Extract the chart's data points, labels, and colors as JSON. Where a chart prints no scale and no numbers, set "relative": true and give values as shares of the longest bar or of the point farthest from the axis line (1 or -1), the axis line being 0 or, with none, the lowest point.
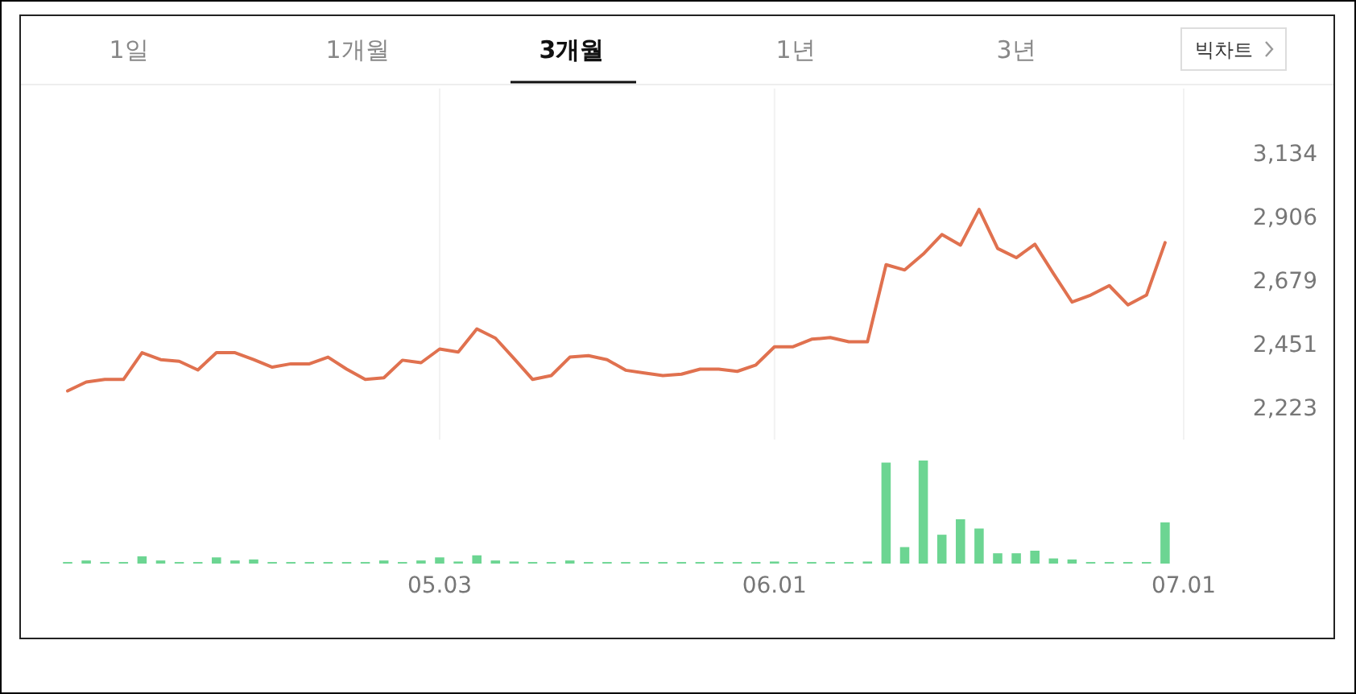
{
  "chart_data": [
    {
      "type": "line",
      "annotations": [
        "1일",
        "1개월",
        "3개월",
        "1년",
        "3년",
        "빅차트"
      ],
      "categories": [
        null,
        null,
        null,
        null,
        null,
        null,
        null,
        null,
        null,
        null,
        null,
        null,
        null,
        null,
        null,
        null,
        null,
        null,
        null,
        null,
        "05.03",
        null,
        null,
        null,
        null,
        null,
        null,
        null,
        null,
        null,
        null,
        null,
        null,
        null,
        null,
        null,
        null,
        null,
        "06.01",
        null,
        null,
        null,
        null,
        null,
        null,
        null,
        null,
        null,
        null,
        null,
        null,
        null,
        null,
        null,
        null,
        null,
        null,
        null,
        null,
        null,
        "07.01"
      ],
      "series": [
        {
          "color": "#e0714f",
          "values": [
            2282,
            2314,
            2323,
            2323,
            2419,
            2394,
            2388,
            2357,
            2419,
            2419,
            2394,
            2367,
            2379,
            2379,
            2403,
            2360,
            2323,
            2329,
            2392,
            2383,
            2432,
            2421,
            2504,
            2471,
            2398,
            2323,
            2337,
            2403,
            2408,
            2394,
            2356,
            2346,
            2337,
            2342,
            2360,
            2360,
            2352,
            2375,
            2440,
            2440,
            2467,
            2473,
            2458,
            2458,
            2734,
            2715,
            2772,
            2842,
            2804,
            2932,
            2792,
            2759,
            2807,
            2702,
            2600,
            2625,
            2659,
            2590,
            2625,
            2813,
            null
          ]
        }
      ],
      "ylim": [
        2223,
        3134
      ],
      "yticks": [
        {
          "value": 2223,
          "label": "2,223"
        },
        {
          "value": 2451,
          "label": "2,451"
        },
        {
          "value": 2679,
          "label": "2,679"
        },
        {
          "value": 2906,
          "label": "2,906"
        },
        {
          "value": 3134,
          "label": "3,134"
        }
      ],
      "tick_labels": "y",
      "grid": "x",
      "marker": "none",
      "line_style": "solid"
    },
    {
      "type": "bar",
      "relative": true,
      "categories": [
        null,
        null,
        null,
        null,
        null,
        null,
        null,
        null,
        null,
        null,
        null,
        null,
        null,
        null,
        null,
        null,
        null,
        null,
        null,
        null,
        "05.03",
        null,
        null,
        null,
        null,
        null,
        null,
        null,
        null,
        null,
        null,
        null,
        null,
        null,
        null,
        null,
        null,
        null,
        "06.01",
        null,
        null,
        null,
        null,
        null,
        null,
        null,
        null,
        null,
        null,
        null,
        null,
        null,
        null,
        null,
        null,
        null,
        null,
        null,
        null,
        null,
        "07.01"
      ],
      "series": [
        {
          "color": "#6cd592",
          "values": [
            0.015,
            0.03,
            0.015,
            0.015,
            0.07,
            0.03,
            0.015,
            0.015,
            0.06,
            0.03,
            0.04,
            0.015,
            0.015,
            0.015,
            0.015,
            0.015,
            0.015,
            0.03,
            0.015,
            0.03,
            0.06,
            0.02,
            0.08,
            0.03,
            0.02,
            0.015,
            0.015,
            0.03,
            0.015,
            0.015,
            0.015,
            0.015,
            0.015,
            0.015,
            0.015,
            0.015,
            0.015,
            0.015,
            0.02,
            0.015,
            0.015,
            0.015,
            0.015,
            0.02,
            0.98,
            0.16,
            1,
            0.28,
            0.43,
            0.34,
            0.1,
            0.1,
            0.125,
            0.05,
            0.04,
            0.015,
            0.015,
            0.015,
            0.015,
            0.4,
            null
          ]
        }
      ],
      "tick_labels": "x"
    }
  ]
}
